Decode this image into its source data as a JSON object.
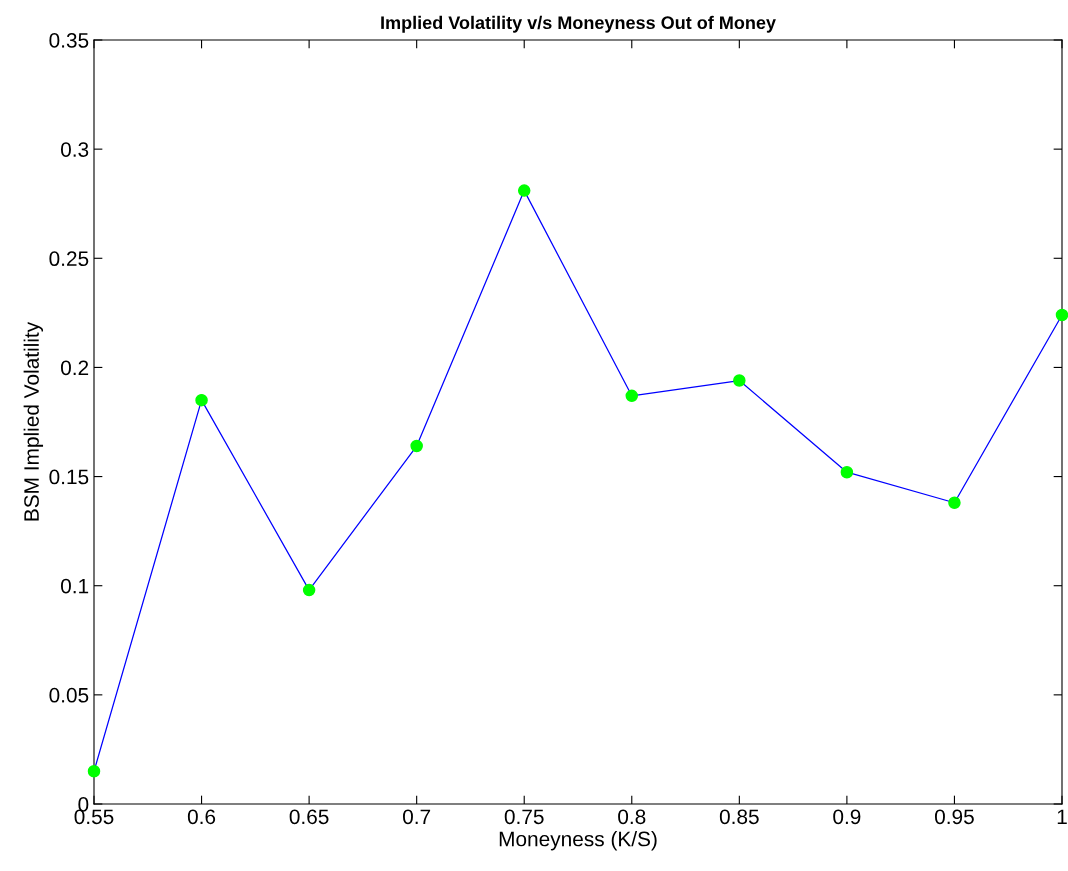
{
  "chart_data": {
    "type": "line",
    "title": "Implied Volatility v/s Moneyness Out of Money",
    "xlabel": "Moneyness (K/S)",
    "ylabel": "BSM Implied Volatility",
    "x": [
      0.55,
      0.6,
      0.65,
      0.7,
      0.75,
      0.8,
      0.85,
      0.9,
      0.95,
      1
    ],
    "series": [
      {
        "color": "#0000ff",
        "colors": [
          "#00ff00",
          "#00ff00",
          "#00ff00",
          "#00ff00",
          "#00ff00",
          "#00ff00",
          "#00ff00",
          "#00ff00",
          "#00ff00",
          "#00ff00"
        ],
        "values": [
          0.015,
          0.185,
          0.098,
          0.164,
          0.281,
          0.187,
          0.194,
          0.152,
          0.138,
          0.224
        ]
      }
    ],
    "marker": "circle",
    "line_style": "solid",
    "grid": false,
    "legend": false,
    "xlim": [
      0.55,
      1
    ],
    "xticks": [
      0.55,
      0.6,
      0.65,
      0.7,
      0.75,
      0.8,
      0.85,
      0.9,
      0.95,
      1
    ],
    "ylim": [
      0,
      0.35
    ],
    "yticks": [
      0,
      0.05,
      0.1,
      0.15,
      0.2,
      0.25,
      0.3,
      0.35
    ]
  }
}
